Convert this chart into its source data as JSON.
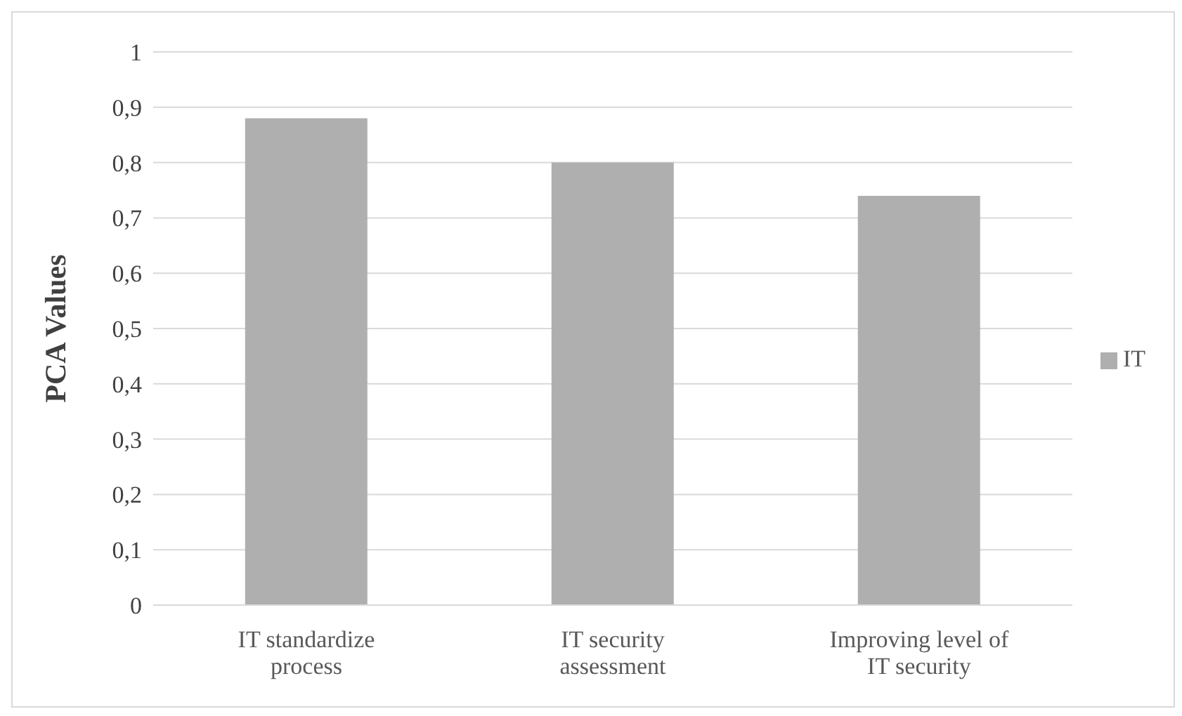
{
  "chart_data": {
    "type": "bar",
    "ylabel": "PCA Values",
    "categories": [
      "IT standardize process",
      "IT security assessment",
      "Improving level of IT security"
    ],
    "series": [
      {
        "name": "IT",
        "color": "#afafaf",
        "values": [
          0.88,
          0.8,
          0.74
        ]
      }
    ],
    "ylim": [
      0,
      1
    ],
    "yticks": [
      0,
      {
        "value": 0.1,
        "label": "0,1"
      },
      {
        "value": 0.2,
        "label": "0,2"
      },
      {
        "value": 0.3,
        "label": "0,3"
      },
      {
        "value": 0.4,
        "label": "0,4"
      },
      {
        "value": 0.5,
        "label": "0,5"
      },
      {
        "value": 0.6,
        "label": "0,6"
      },
      {
        "value": 0.7,
        "label": "0,7"
      },
      {
        "value": 0.8,
        "label": "0,8"
      },
      {
        "value": 0.9,
        "label": "0,9"
      },
      1
    ],
    "grid": "y",
    "legend": "right"
  }
}
